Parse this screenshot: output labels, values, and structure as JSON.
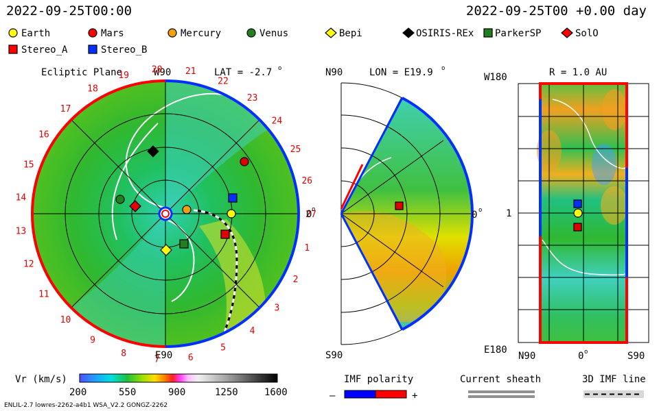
{
  "header": {
    "timestamp_left": "2022-09-25T00:00",
    "timestamp_right": "2022-09-25T00 +0.00 day"
  },
  "legend": {
    "items": [
      {
        "label": "Earth",
        "marker": "circle",
        "color": "#ffff00"
      },
      {
        "label": "Mars",
        "marker": "circle",
        "color": "#ff0000"
      },
      {
        "label": "Mercury",
        "marker": "circle",
        "color": "#f0a000"
      },
      {
        "label": "Venus",
        "marker": "circle",
        "color": "#208020"
      },
      {
        "label": "Bepi",
        "marker": "diamond",
        "color": "#ffff00"
      },
      {
        "label": "OSIRIS-REx",
        "marker": "diamond",
        "color": "#000000"
      },
      {
        "label": "ParkerSP",
        "marker": "square",
        "color": "#208020"
      },
      {
        "label": "SolO",
        "marker": "diamond",
        "color": "#ff0000"
      },
      {
        "label": "Stereo_A",
        "marker": "square",
        "color": "#ff0000"
      },
      {
        "label": "Stereo_B",
        "marker": "square",
        "color": "#0030ff"
      }
    ]
  },
  "panels": {
    "ecliptic": {
      "title": "Ecliptic Plane",
      "top_label": "W90",
      "bottom_label": "E90",
      "right_label": "0",
      "lat_label": "LAT = -2.7",
      "degree_mark": "o",
      "carrington_labels": [
        "1",
        "2",
        "3",
        "4",
        "5",
        "6",
        "7",
        "8",
        "9",
        "10",
        "11",
        "12",
        "13",
        "14",
        "15",
        "16",
        "17",
        "18",
        "19",
        "20",
        "21",
        "22",
        "23",
        "24",
        "25",
        "26",
        "27"
      ]
    },
    "meridional": {
      "top_label": "N90",
      "bottom_label": "S90",
      "lon_label": "LON = E19.9",
      "degree_mark": "o",
      "right_label": "0"
    },
    "map": {
      "r_label": "R = 1.0 AU",
      "top_left": "W180",
      "bottom_left": "E180",
      "mid_left": "1",
      "bottom_axis": [
        "N90",
        "0",
        "S90"
      ],
      "degree_mark": "o"
    }
  },
  "colorbar": {
    "label": "Vr (km/s)",
    "ticks": [
      "200",
      "550",
      "900",
      "1250",
      "1600"
    ]
  },
  "imf": {
    "title": "IMF polarity",
    "minus": "–",
    "plus": "+",
    "neg_color": "#0000ff",
    "pos_color": "#ff0000"
  },
  "current_sheath": {
    "title": "Current sheath"
  },
  "imf_line": {
    "title": "3D IMF line"
  },
  "footer": {
    "model": "ENLIL-2.7 lowres-2262-a4b1 WSA_V2.2 GONGZ-2262"
  }
}
